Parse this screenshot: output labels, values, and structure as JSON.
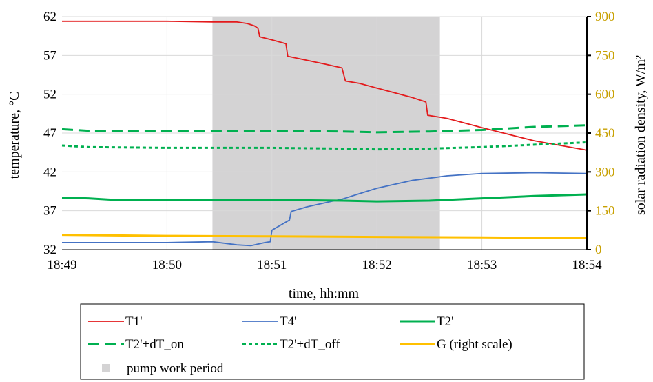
{
  "chart_data": {
    "type": "line",
    "x_unit": "time",
    "xlabel": "time, hh:mm",
    "ylabel": "temperature, °C",
    "y2label": "solar radiation density, W/m²",
    "xlim": [
      "18:49",
      "18:54"
    ],
    "x_ticks": [
      "18:49",
      "18:50",
      "18:51",
      "18:52",
      "18:53",
      "18:54"
    ],
    "ylim": [
      32,
      62
    ],
    "y_ticks": [
      32,
      37,
      42,
      47,
      52,
      57,
      62
    ],
    "y2lim": [
      0,
      900
    ],
    "y2_ticks": [
      0,
      150,
      300,
      450,
      600,
      750,
      900
    ],
    "grid": true,
    "legend_position": "bottom",
    "shaded_region": {
      "name": "pump work period",
      "x_start": "18:50:26",
      "x_end": "18:52:36",
      "color": "#d4d3d4"
    },
    "series": [
      {
        "name": "T1'",
        "axis": "left",
        "color": "#e31a1c",
        "style": "solid",
        "x": [
          "18:49:00",
          "18:50:00",
          "18:50:26",
          "18:50:40",
          "18:50:46",
          "18:50:50",
          "18:50:52",
          "18:50:53",
          "18:51:00",
          "18:51:08",
          "18:51:09",
          "18:51:30",
          "18:51:40",
          "18:51:42",
          "18:51:50",
          "18:52:00",
          "18:52:20",
          "18:52:28",
          "18:52:29",
          "18:52:40",
          "18:53:00",
          "18:53:30",
          "18:54:00"
        ],
        "values": [
          61.4,
          61.4,
          61.3,
          61.3,
          61.1,
          60.8,
          60.5,
          59.4,
          59.0,
          58.5,
          56.9,
          55.9,
          55.4,
          53.7,
          53.4,
          52.8,
          51.6,
          51.0,
          49.3,
          48.9,
          47.7,
          46.0,
          44.8
        ]
      },
      {
        "name": "T4'",
        "axis": "left",
        "color": "#4472c4",
        "style": "solid",
        "x": [
          "18:49:00",
          "18:50:00",
          "18:50:26",
          "18:50:40",
          "18:50:48",
          "18:50:56",
          "18:50:59",
          "18:51:00",
          "18:51:10",
          "18:51:11",
          "18:51:20",
          "18:51:40",
          "18:52:00",
          "18:52:20",
          "18:52:40",
          "18:53:00",
          "18:53:30",
          "18:54:00"
        ],
        "values": [
          32.9,
          32.9,
          33.0,
          32.6,
          32.5,
          32.9,
          33.0,
          34.5,
          35.8,
          36.9,
          37.5,
          38.5,
          39.9,
          40.9,
          41.5,
          41.8,
          41.9,
          41.8
        ]
      },
      {
        "name": "T2'",
        "axis": "left",
        "color": "#00b050",
        "style": "solid",
        "x": [
          "18:49:00",
          "18:49:15",
          "18:49:30",
          "18:50:00",
          "18:51:00",
          "18:51:40",
          "18:52:00",
          "18:52:30",
          "18:53:00",
          "18:53:30",
          "18:54:00"
        ],
        "values": [
          38.7,
          38.6,
          38.4,
          38.4,
          38.4,
          38.3,
          38.2,
          38.3,
          38.6,
          38.9,
          39.1
        ]
      },
      {
        "name": "T2'+dT_on",
        "axis": "left",
        "color": "#00b050",
        "style": "long-dash",
        "x": [
          "18:49:00",
          "18:49:15",
          "18:50:00",
          "18:51:00",
          "18:51:40",
          "18:52:00",
          "18:52:30",
          "18:53:00",
          "18:53:30",
          "18:54:00"
        ],
        "values": [
          47.5,
          47.3,
          47.3,
          47.3,
          47.2,
          47.1,
          47.2,
          47.4,
          47.8,
          48.0
        ]
      },
      {
        "name": "T2'+dT_off",
        "axis": "left",
        "color": "#00b050",
        "style": "short-dash",
        "x": [
          "18:49:00",
          "18:49:15",
          "18:50:00",
          "18:51:00",
          "18:51:40",
          "18:52:00",
          "18:52:30",
          "18:53:00",
          "18:53:30",
          "18:54:00"
        ],
        "values": [
          45.4,
          45.2,
          45.1,
          45.1,
          45.0,
          44.9,
          45.0,
          45.2,
          45.5,
          45.8
        ]
      },
      {
        "name": "G (right scale)",
        "axis": "right",
        "color": "#ffc000",
        "style": "solid",
        "x": [
          "18:49:00",
          "18:50:00",
          "18:51:00",
          "18:52:00",
          "18:53:00",
          "18:54:00"
        ],
        "values": [
          57,
          53,
          51,
          49,
          47,
          44
        ]
      }
    ],
    "legend": [
      {
        "label": "T1'",
        "color": "#e31a1c",
        "style": "solid"
      },
      {
        "label": "T4'",
        "color": "#4472c4",
        "style": "solid"
      },
      {
        "label": "T2'",
        "color": "#00b050",
        "style": "solid"
      },
      {
        "label": "T2'+dT_on",
        "color": "#00b050",
        "style": "long-dash"
      },
      {
        "label": "T2'+dT_off",
        "color": "#00b050",
        "style": "short-dash"
      },
      {
        "label": "G (right scale)",
        "color": "#ffc000",
        "style": "solid"
      },
      {
        "label": "pump work period",
        "color": "#d4d3d4",
        "style": "square"
      }
    ]
  }
}
